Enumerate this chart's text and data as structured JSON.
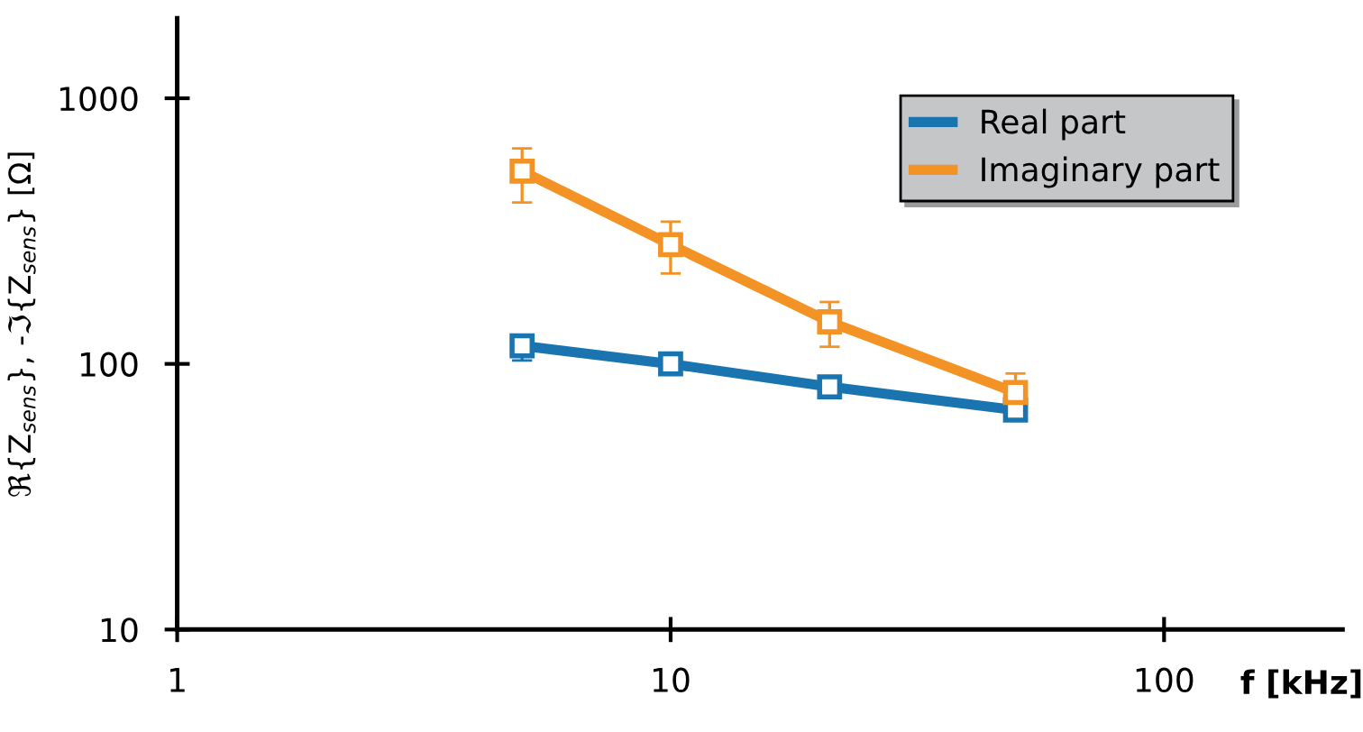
{
  "chart_data": {
    "type": "line",
    "xlabel": "f [kHz]",
    "ylabel": "ℜ{Z$_{sens}$}, -ℑ{Z$_{sens}$} [Ω]",
    "x": [
      5,
      10,
      21,
      50
    ],
    "series": [
      {
        "name": "Real part",
        "color": "#1a74b0",
        "values": [
          117,
          100,
          82,
          67
        ],
        "errors": [
          [
            103,
            126
          ],
          null,
          null,
          [
            63,
            72
          ]
        ]
      },
      {
        "name": "Imaginary part",
        "color": "#f39325",
        "values": [
          532,
          281,
          144,
          78
        ],
        "errors": [
          [
            405,
            648
          ],
          [
            219,
            343
          ],
          [
            116,
            171
          ],
          [
            78,
            92
          ]
        ]
      }
    ],
    "log": "xy",
    "xlim": [
      1,
      230
    ],
    "ylim": [
      10,
      2000
    ],
    "xticks": [
      1,
      10,
      100
    ],
    "yticks": [
      10,
      100,
      1000
    ],
    "grid": false,
    "legend": "top right",
    "marker": "square",
    "line_style": "solid"
  }
}
